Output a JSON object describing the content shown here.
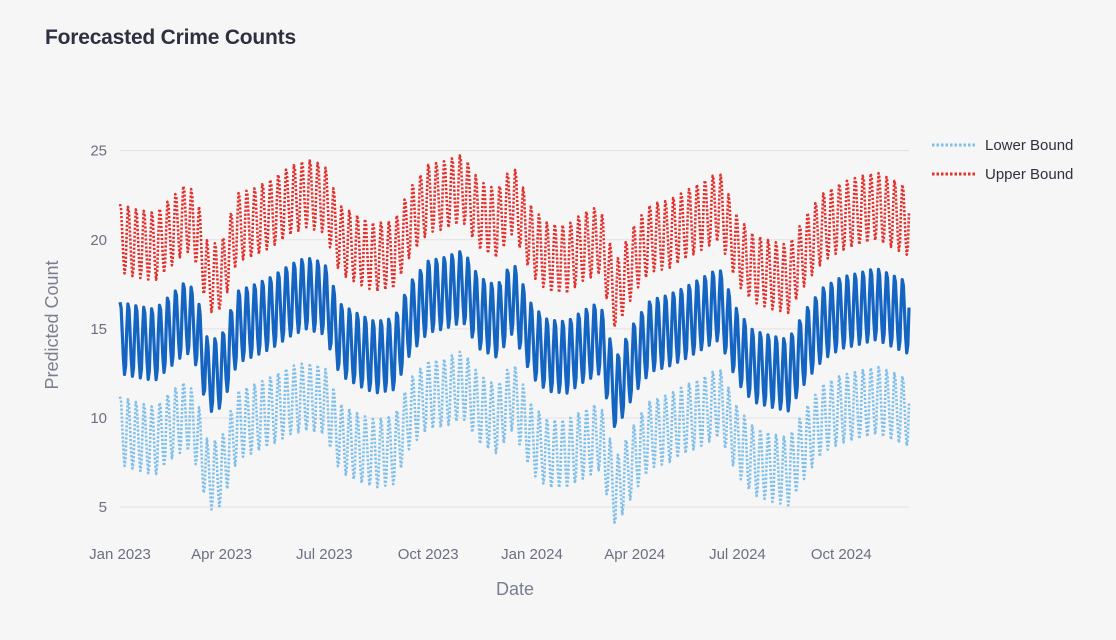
{
  "chart_data": {
    "type": "line",
    "title": "Forecasted Crime Counts",
    "xlabel": "Date",
    "ylabel": "Predicted Count",
    "x_range": [
      "2023-01-01",
      "2024-11-30"
    ],
    "ylim": [
      4,
      27
    ],
    "grid": true,
    "legend_position": "top-right",
    "x_ticks": [
      {
        "date": "2023-01-01",
        "label": "Jan 2023"
      },
      {
        "date": "2023-04-01",
        "label": "Apr 2023"
      },
      {
        "date": "2023-07-01",
        "label": "Jul 2023"
      },
      {
        "date": "2023-10-01",
        "label": "Oct 2023"
      },
      {
        "date": "2024-01-01",
        "label": "Jan 2024"
      },
      {
        "date": "2024-04-01",
        "label": "Apr 2024"
      },
      {
        "date": "2024-07-01",
        "label": "Jul 2024"
      },
      {
        "date": "2024-10-01",
        "label": "Oct 2024"
      }
    ],
    "y_ticks": [
      5,
      10,
      15,
      20,
      25
    ],
    "series": [
      {
        "name": "Lower Bound",
        "color": "#7fbfea",
        "style": "dotted",
        "in_legend": true,
        "points": [
          [
            "2023-01-01",
            9.3
          ],
          [
            "2023-01-15",
            9.0
          ],
          [
            "2023-02-01",
            8.7
          ],
          [
            "2023-02-15",
            9.6
          ],
          [
            "2023-03-01",
            10.2
          ],
          [
            "2023-03-10",
            9.2
          ],
          [
            "2023-03-20",
            6.7
          ],
          [
            "2023-04-01",
            7.0
          ],
          [
            "2023-04-15",
            9.6
          ],
          [
            "2023-05-01",
            10.0
          ],
          [
            "2023-05-15",
            10.4
          ],
          [
            "2023-06-01",
            11.0
          ],
          [
            "2023-06-15",
            11.2
          ],
          [
            "2023-07-01",
            11.0
          ],
          [
            "2023-07-15",
            8.9
          ],
          [
            "2023-08-01",
            8.3
          ],
          [
            "2023-08-15",
            8.0
          ],
          [
            "2023-09-01",
            8.2
          ],
          [
            "2023-09-15",
            10.3
          ],
          [
            "2023-10-01",
            11.3
          ],
          [
            "2023-10-15",
            11.4
          ],
          [
            "2023-11-01",
            11.9
          ],
          [
            "2023-11-15",
            10.5
          ],
          [
            "2023-12-01",
            9.9
          ],
          [
            "2023-12-15",
            11.3
          ],
          [
            "2024-01-01",
            8.8
          ],
          [
            "2024-01-15",
            8.0
          ],
          [
            "2024-02-01",
            8.0
          ],
          [
            "2024-02-15",
            8.5
          ],
          [
            "2024-03-01",
            9.0
          ],
          [
            "2024-03-15",
            5.8
          ],
          [
            "2024-04-01",
            7.8
          ],
          [
            "2024-04-15",
            9.1
          ],
          [
            "2024-05-01",
            9.4
          ],
          [
            "2024-05-15",
            9.9
          ],
          [
            "2024-06-01",
            10.4
          ],
          [
            "2024-06-15",
            10.9
          ],
          [
            "2024-07-01",
            8.7
          ],
          [
            "2024-07-15",
            7.6
          ],
          [
            "2024-08-01",
            7.2
          ],
          [
            "2024-08-15",
            7.0
          ],
          [
            "2024-09-01",
            8.8
          ],
          [
            "2024-09-15",
            10.0
          ],
          [
            "2024-10-01",
            10.5
          ],
          [
            "2024-10-15",
            10.7
          ],
          [
            "2024-11-01",
            11.0
          ],
          [
            "2024-11-30",
            10.3
          ]
        ]
      },
      {
        "name": "Upper Bound",
        "color": "#e2302d",
        "style": "dotted",
        "in_legend": true,
        "points": [
          [
            "2023-01-01",
            20.1
          ],
          [
            "2023-01-15",
            19.8
          ],
          [
            "2023-02-01",
            19.6
          ],
          [
            "2023-02-15",
            20.4
          ],
          [
            "2023-03-01",
            21.3
          ],
          [
            "2023-03-10",
            20.5
          ],
          [
            "2023-03-20",
            17.8
          ],
          [
            "2023-04-01",
            18.0
          ],
          [
            "2023-04-15",
            20.7
          ],
          [
            "2023-05-01",
            21.0
          ],
          [
            "2023-05-15",
            21.5
          ],
          [
            "2023-06-01",
            22.2
          ],
          [
            "2023-06-15",
            22.6
          ],
          [
            "2023-07-01",
            22.3
          ],
          [
            "2023-07-15",
            20.0
          ],
          [
            "2023-08-01",
            19.4
          ],
          [
            "2023-08-15",
            19.0
          ],
          [
            "2023-09-01",
            19.2
          ],
          [
            "2023-09-15",
            21.0
          ],
          [
            "2023-10-01",
            22.3
          ],
          [
            "2023-10-15",
            22.5
          ],
          [
            "2023-11-01",
            22.9
          ],
          [
            "2023-11-15",
            21.4
          ],
          [
            "2023-12-01",
            20.9
          ],
          [
            "2023-12-15",
            22.3
          ],
          [
            "2024-01-01",
            19.9
          ],
          [
            "2024-01-15",
            19.0
          ],
          [
            "2024-02-01",
            18.9
          ],
          [
            "2024-02-15",
            19.6
          ],
          [
            "2024-03-01",
            20.0
          ],
          [
            "2024-03-15",
            16.8
          ],
          [
            "2024-04-01",
            19.0
          ],
          [
            "2024-04-15",
            20.1
          ],
          [
            "2024-05-01",
            20.3
          ],
          [
            "2024-05-15",
            20.8
          ],
          [
            "2024-06-01",
            21.4
          ],
          [
            "2024-06-15",
            21.9
          ],
          [
            "2024-07-01",
            19.4
          ],
          [
            "2024-07-15",
            18.4
          ],
          [
            "2024-08-01",
            18.0
          ],
          [
            "2024-08-15",
            17.8
          ],
          [
            "2024-09-01",
            19.6
          ],
          [
            "2024-09-15",
            20.7
          ],
          [
            "2024-10-01",
            21.3
          ],
          [
            "2024-10-15",
            21.6
          ],
          [
            "2024-11-01",
            21.9
          ],
          [
            "2024-11-30",
            21.0
          ]
        ]
      },
      {
        "name": "Prediction",
        "color": "#1464c2",
        "style": "solid",
        "in_legend": false,
        "points": [
          [
            "2023-01-01",
            14.5
          ],
          [
            "2023-01-15",
            14.3
          ],
          [
            "2023-02-01",
            14.1
          ],
          [
            "2023-02-15",
            14.9
          ],
          [
            "2023-03-01",
            15.7
          ],
          [
            "2023-03-10",
            14.9
          ],
          [
            "2023-03-20",
            12.3
          ],
          [
            "2023-04-01",
            12.6
          ],
          [
            "2023-04-15",
            15.1
          ],
          [
            "2023-05-01",
            15.5
          ],
          [
            "2023-05-15",
            15.9
          ],
          [
            "2023-06-01",
            16.6
          ],
          [
            "2023-06-15",
            17.0
          ],
          [
            "2023-07-01",
            16.7
          ],
          [
            "2023-07-15",
            14.4
          ],
          [
            "2023-08-01",
            13.8
          ],
          [
            "2023-08-15",
            13.4
          ],
          [
            "2023-09-01",
            13.6
          ],
          [
            "2023-09-15",
            15.6
          ],
          [
            "2023-10-01",
            16.8
          ],
          [
            "2023-10-15",
            17.0
          ],
          [
            "2023-11-01",
            17.4
          ],
          [
            "2023-11-15",
            15.9
          ],
          [
            "2023-12-01",
            15.4
          ],
          [
            "2023-12-15",
            16.8
          ],
          [
            "2024-01-01",
            14.3
          ],
          [
            "2024-01-15",
            13.5
          ],
          [
            "2024-02-01",
            13.4
          ],
          [
            "2024-02-15",
            14.0
          ],
          [
            "2024-03-01",
            14.5
          ],
          [
            "2024-03-15",
            11.3
          ],
          [
            "2024-04-01",
            13.4
          ],
          [
            "2024-04-15",
            14.6
          ],
          [
            "2024-05-01",
            14.9
          ],
          [
            "2024-05-15",
            15.3
          ],
          [
            "2024-06-01",
            15.9
          ],
          [
            "2024-06-15",
            16.4
          ],
          [
            "2024-07-01",
            14.0
          ],
          [
            "2024-07-15",
            12.9
          ],
          [
            "2024-08-01",
            12.6
          ],
          [
            "2024-08-15",
            12.4
          ],
          [
            "2024-09-01",
            14.2
          ],
          [
            "2024-09-15",
            15.3
          ],
          [
            "2024-10-01",
            15.9
          ],
          [
            "2024-10-15",
            16.1
          ],
          [
            "2024-11-01",
            16.4
          ],
          [
            "2024-11-30",
            15.6
          ]
        ],
        "weekly_amplitude": 2.0
      }
    ]
  }
}
